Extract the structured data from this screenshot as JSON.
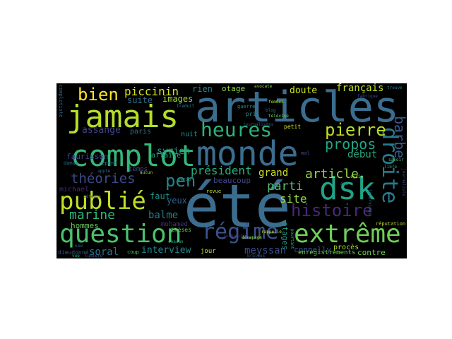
{
  "words": [
    {
      "id": "ete",
      "text": "été",
      "color": "#3b6d8f"
    },
    {
      "id": "articles",
      "text": "articles",
      "color": "#3b6d8f"
    },
    {
      "id": "monde",
      "text": "monde",
      "color": "#3b6d8f"
    },
    {
      "id": "complot",
      "text": "complot",
      "color": "#35b779"
    },
    {
      "id": "jamais",
      "text": "jamais",
      "color": "#b5de2b"
    },
    {
      "id": "question",
      "text": "question",
      "color": "#4ac16d"
    },
    {
      "id": "dsk",
      "text": "dsk",
      "color": "#20a386"
    },
    {
      "id": "droite",
      "text": "droite",
      "color": "#2a788e"
    },
    {
      "id": "extreme",
      "text": "extrême",
      "color": "#6ece58"
    },
    {
      "id": "regime",
      "text": "régime",
      "color": "#3b528b"
    },
    {
      "id": "heures",
      "text": "heures",
      "color": "#2db27d"
    },
    {
      "id": "publie",
      "text": "publié",
      "color": "#c2df23"
    },
    {
      "id": "histoire",
      "text": "histoire",
      "color": "#482878"
    },
    {
      "id": "pierre",
      "text": "pierre",
      "color": "#bddf26"
    },
    {
      "id": "bien",
      "text": "bien",
      "color": "#fde725"
    },
    {
      "id": "barbe",
      "text": "barbe",
      "color": "#38598c"
    },
    {
      "id": "theories",
      "text": "théories",
      "color": "#3e4a89"
    },
    {
      "id": "pen",
      "text": "pen",
      "color": "#26828e"
    },
    {
      "id": "propos",
      "text": "propos",
      "color": "#22a884"
    },
    {
      "id": "marine",
      "text": "marine",
      "color": "#32b67a"
    },
    {
      "id": "article",
      "text": "article",
      "color": "#8fd744"
    },
    {
      "id": "piccinin",
      "text": "piccinin",
      "color": "#d8e219"
    },
    {
      "id": "parti",
      "text": "parti",
      "color": "#4fbf6e"
    },
    {
      "id": "president",
      "text": "président",
      "color": "#29af7f"
    },
    {
      "id": "grand",
      "text": "grand",
      "color": "#c8e020"
    },
    {
      "id": "site",
      "text": "site",
      "color": "#93d741"
    },
    {
      "id": "soral",
      "text": "soral",
      "color": "#2c738e"
    },
    {
      "id": "interview",
      "text": "interview",
      "color": "#24868e"
    },
    {
      "id": "meyssan",
      "text": "meyssan",
      "color": "#3d4d8a"
    },
    {
      "id": "balme",
      "text": "balme",
      "color": "#2a7b8e"
    },
    {
      "id": "hommes",
      "text": "hommes",
      "color": "#6ccd5a"
    },
    {
      "id": "assange",
      "text": "assange",
      "color": "#414487"
    },
    {
      "id": "syrien",
      "text": "syrien",
      "color": "#1f9e89"
    },
    {
      "id": "images",
      "text": "images",
      "color": "#a0da39"
    },
    {
      "id": "suite",
      "text": "suite",
      "color": "#2d708e"
    },
    {
      "id": "rien",
      "text": "rien",
      "color": "#25848e"
    },
    {
      "id": "otage",
      "text": "otage",
      "color": "#8bd646"
    },
    {
      "id": "doute",
      "text": "doute",
      "color": "#d2e21b"
    },
    {
      "id": "francais",
      "text": "français",
      "color": "#c0df25"
    },
    {
      "id": "debut",
      "text": "début",
      "color": "#25ab82"
    },
    {
      "id": "beaucoup",
      "text": "beaucoup",
      "color": "#3f4788"
    },
    {
      "id": "faut",
      "text": "faut",
      "color": "#1f968b"
    },
    {
      "id": "yeux",
      "text": "yeux",
      "color": "#35608d"
    },
    {
      "id": "connelly",
      "text": "connelly",
      "color": "#3a538b"
    },
    {
      "id": "otages",
      "text": "otages",
      "color": "#1f9a8a"
    },
    {
      "id": "contre",
      "text": "contre",
      "color": "#75d054"
    },
    {
      "id": "proces",
      "text": "procès",
      "color": "#a8db34"
    },
    {
      "id": "enregistrements",
      "text": "enregistrements",
      "color": "#6ccd5a"
    },
    {
      "id": "affaire",
      "text": "affaire",
      "color": "#22a785"
    },
    {
      "id": "temps",
      "text": "temps",
      "color": "#3e4c8a"
    },
    {
      "id": "paris",
      "text": "paris",
      "color": "#2b748e"
    },
    {
      "id": "faurisson",
      "text": "faurisson",
      "color": "#3e4989"
    },
    {
      "id": "nuit",
      "text": "nuit",
      "color": "#228c8d"
    },
    {
      "id": "jour",
      "text": "jour",
      "color": "#d0e11c"
    },
    {
      "id": "mohamed",
      "text": "mohamed",
      "color": "#46337e"
    },
    {
      "id": "theses",
      "text": "thèses",
      "color": "#63cb5f"
    },
    {
      "id": "michael",
      "text": "michael",
      "color": "#472a7a"
    },
    {
      "id": "dieudonne",
      "text": "dieudonné",
      "color": "#3b528b"
    },
    {
      "id": "coup",
      "text": "coup",
      "color": "#4cc26c"
    },
    {
      "id": "revue",
      "text": "revue",
      "color": "#b8de29"
    },
    {
      "id": "repond",
      "text": "répond",
      "color": "#2a768e"
    },
    {
      "id": "apple",
      "text": "apple",
      "color": "#2f6b8e"
    },
    {
      "id": "damas",
      "text": "damas",
      "color": "#2d718e"
    },
    {
      "id": "guerre",
      "text": "guerre",
      "color": "#228b8d"
    },
    {
      "id": "pris",
      "text": "pris",
      "color": "#21918c"
    },
    {
      "id": "mal",
      "text": "mal",
      "color": "#3b518b"
    },
    {
      "id": "petit",
      "text": "petit",
      "color": "#d8e219"
    },
    {
      "id": "avocate",
      "text": "avocate",
      "color": "#8bd646"
    },
    {
      "id": "reputation",
      "text": "réputation",
      "color": "#bade28"
    },
    {
      "id": "libre",
      "text": "libre",
      "color": "#20a486"
    },
    {
      "id": "syrie",
      "text": "syrie",
      "color": "#b8de29"
    },
    {
      "id": "lumiere",
      "text": "lumière",
      "color": "#3b518b"
    },
    {
      "id": "vue",
      "text": "vue",
      "color": "#25ac82"
    },
    {
      "id": "new",
      "text": "new",
      "color": "#3b5a8c"
    },
    {
      "id": "detenus",
      "text": "détenus",
      "color": "#31668e"
    },
    {
      "id": "derapage",
      "text": "dérapage",
      "color": "#8fd744"
    },
    {
      "id": "brulees",
      "text": "brûlées",
      "color": "#38588c"
    },
    {
      "id": "recherche",
      "text": "recherche",
      "color": "#472c7a"
    },
    {
      "id": "complotiste",
      "text": "complotiste",
      "color": "#31688e"
    },
    {
      "id": "interviews",
      "text": "interviews",
      "color": "#2c718e"
    },
    {
      "id": "journaliste",
      "text": "journaliste",
      "color": "#3e4989"
    },
    {
      "id": "savoir",
      "text": "savoir",
      "color": "#4ac16d"
    },
    {
      "id": "rappelle",
      "text": "rappelle",
      "color": "#b5de2b"
    },
    {
      "id": "femmes",
      "text": "femmes",
      "color": "#a5db36"
    },
    {
      "id": "pourtant",
      "text": "pourtant",
      "color": "#25ab82"
    },
    {
      "id": "journalistes",
      "text": "journalistes",
      "color": "#3d4e8a"
    },
    {
      "id": "blog",
      "text": "blog",
      "color": "#2e6f8e"
    },
    {
      "id": "trouve",
      "text": "trouve",
      "color": "#277f8e"
    },
    {
      "id": "aucun",
      "text": "aucun",
      "color": "#addc30"
    },
    {
      "id": "traduit",
      "text": "traduit",
      "color": "#25848e"
    },
    {
      "id": "ans",
      "text": "ans",
      "color": "#24878e"
    },
    {
      "id": "fabrique",
      "text": "fabrique",
      "color": "#3d4d8a"
    },
    {
      "id": "televise",
      "text": "télévisé",
      "color": "#6ccd5a"
    },
    {
      "id": "perdu",
      "text": "perdu",
      "color": "#1fa187"
    },
    {
      "id": "chacun",
      "text": "chacun",
      "color": "#27ad81"
    }
  ]
}
